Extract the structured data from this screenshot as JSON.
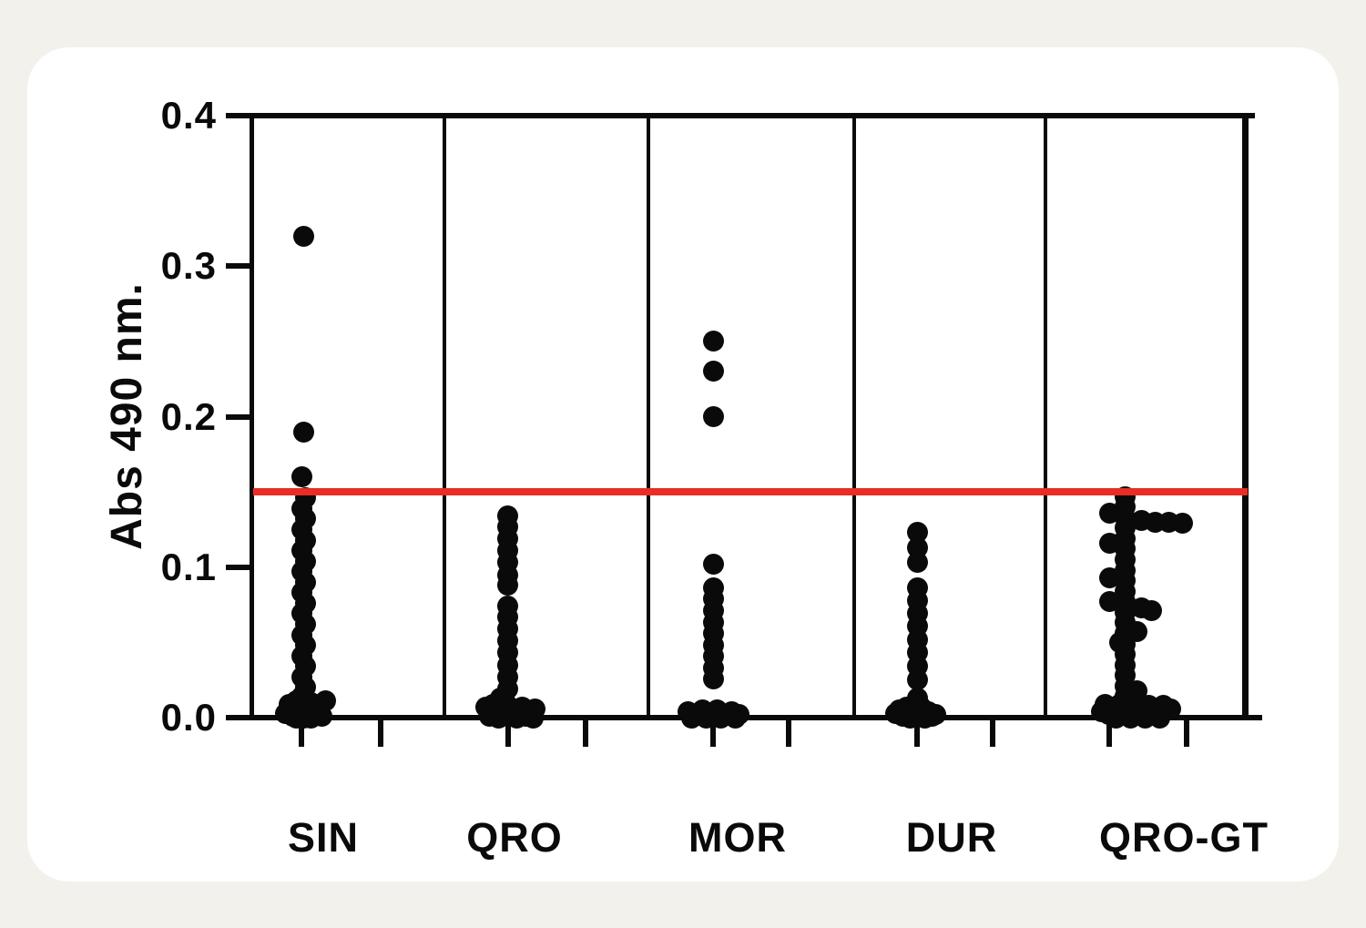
{
  "figure": {
    "background_color": "#f3f1eb",
    "card_color": "#ffffff"
  },
  "chart_data": {
    "type": "scatter",
    "variant": "strip-dot-plot",
    "title": "",
    "xlabel": "",
    "ylabel": "Abs 490 nm.",
    "ylim": [
      0,
      0.4
    ],
    "ytick_values": [
      0,
      0.1,
      0.2,
      0.3,
      0.4
    ],
    "ytick_labels": [
      "0.0",
      "0.1",
      "0.2",
      "0.3",
      "0.4"
    ],
    "grid": "off",
    "legend": "none",
    "point_color": "#0a0a0a",
    "cutoff_line": {
      "value": 0.15,
      "color": "#e82d24"
    },
    "categories": [
      "SIN",
      "QRO",
      "MOR",
      "DUR",
      "QRO-GT"
    ],
    "series": [
      {
        "name": "SIN",
        "points": [
          [
            0,
            0.32
          ],
          [
            0,
            0.19
          ],
          [
            -2,
            0.16
          ],
          [
            2,
            0.146
          ],
          [
            -2,
            0.139
          ],
          [
            2,
            0.132
          ],
          [
            -2,
            0.125
          ],
          [
            2,
            0.118
          ],
          [
            -2,
            0.111
          ],
          [
            2,
            0.104
          ],
          [
            -2,
            0.097
          ],
          [
            2,
            0.09
          ],
          [
            -2,
            0.083
          ],
          [
            2,
            0.076
          ],
          [
            -2,
            0.069
          ],
          [
            2,
            0.062
          ],
          [
            -2,
            0.055
          ],
          [
            2,
            0.048
          ],
          [
            -2,
            0.041
          ],
          [
            2,
            0.034
          ],
          [
            -2,
            0.027
          ],
          [
            2,
            0.02
          ],
          [
            -2,
            0.014
          ],
          [
            -16,
            0.009
          ],
          [
            -8,
            0.011
          ],
          [
            0,
            0.008
          ],
          [
            8,
            0.01
          ],
          [
            16,
            0.007
          ],
          [
            24,
            0.011
          ],
          [
            -20,
            0.003
          ],
          [
            -12,
            0.001
          ],
          [
            -4,
            0.004
          ],
          [
            4,
            0.001
          ],
          [
            12,
            0.003
          ],
          [
            20,
            0.001
          ],
          [
            0,
            0.0
          ],
          [
            -8,
            0.0
          ],
          [
            8,
            0.0
          ]
        ]
      },
      {
        "name": "QRO",
        "points": [
          [
            0,
            0.134
          ],
          [
            0,
            0.127
          ],
          [
            0,
            0.119
          ],
          [
            0,
            0.111
          ],
          [
            0,
            0.103
          ],
          [
            0,
            0.095
          ],
          [
            0,
            0.088
          ],
          [
            0,
            0.074
          ],
          [
            0,
            0.067
          ],
          [
            0,
            0.059
          ],
          [
            0,
            0.051
          ],
          [
            0,
            0.043
          ],
          [
            0,
            0.035
          ],
          [
            0,
            0.027
          ],
          [
            0,
            0.019
          ],
          [
            -8,
            0.013
          ],
          [
            -24,
            0.007
          ],
          [
            -16,
            0.009
          ],
          [
            -8,
            0.006
          ],
          [
            0,
            0.008
          ],
          [
            8,
            0.005
          ],
          [
            16,
            0.007
          ],
          [
            24,
            0.004
          ],
          [
            30,
            0.006
          ],
          [
            -20,
            0.001
          ],
          [
            -10,
            0.0
          ],
          [
            0,
            0.001
          ],
          [
            10,
            0.0
          ],
          [
            20,
            0.001
          ],
          [
            28,
            0.0
          ]
        ]
      },
      {
        "name": "MOR",
        "points": [
          [
            0,
            0.25
          ],
          [
            0,
            0.23
          ],
          [
            0,
            0.2
          ],
          [
            0,
            0.102
          ],
          [
            0,
            0.086
          ],
          [
            0,
            0.079
          ],
          [
            0,
            0.071
          ],
          [
            0,
            0.063
          ],
          [
            0,
            0.056
          ],
          [
            0,
            0.048
          ],
          [
            0,
            0.041
          ],
          [
            0,
            0.033
          ],
          [
            0,
            0.026
          ],
          [
            -28,
            0.004
          ],
          [
            -20,
            0.002
          ],
          [
            -12,
            0.005
          ],
          [
            -4,
            0.002
          ],
          [
            4,
            0.005
          ],
          [
            12,
            0.002
          ],
          [
            20,
            0.004
          ],
          [
            28,
            0.002
          ],
          [
            -24,
            0.0
          ],
          [
            -8,
            0.0
          ],
          [
            8,
            0.0
          ],
          [
            24,
            0.0
          ],
          [
            0,
            0.001
          ]
        ]
      },
      {
        "name": "DUR",
        "points": [
          [
            0,
            0.123
          ],
          [
            0,
            0.113
          ],
          [
            0,
            0.103
          ],
          [
            0,
            0.086
          ],
          [
            0,
            0.078
          ],
          [
            0,
            0.069
          ],
          [
            0,
            0.061
          ],
          [
            0,
            0.052
          ],
          [
            0,
            0.043
          ],
          [
            0,
            0.034
          ],
          [
            0,
            0.025
          ],
          [
            0,
            0.013
          ],
          [
            -20,
            0.005
          ],
          [
            -12,
            0.007
          ],
          [
            -4,
            0.005
          ],
          [
            4,
            0.007
          ],
          [
            12,
            0.004
          ],
          [
            -16,
            0.001
          ],
          [
            -8,
            0.0
          ],
          [
            0,
            0.002
          ],
          [
            8,
            0.0
          ],
          [
            16,
            0.001
          ],
          [
            -24,
            0.003
          ],
          [
            20,
            0.002
          ]
        ]
      },
      {
        "name": "QRO-GT",
        "points": [
          [
            0,
            0.147
          ],
          [
            0,
            0.14
          ],
          [
            0,
            0.133
          ],
          [
            0,
            0.126
          ],
          [
            0,
            0.119
          ],
          [
            0,
            0.112
          ],
          [
            0,
            0.105
          ],
          [
            0,
            0.098
          ],
          [
            0,
            0.091
          ],
          [
            0,
            0.084
          ],
          [
            0,
            0.077
          ],
          [
            0,
            0.07
          ],
          [
            0,
            0.063
          ],
          [
            0,
            0.056
          ],
          [
            0,
            0.049
          ],
          [
            0,
            0.042
          ],
          [
            0,
            0.035
          ],
          [
            0,
            0.028
          ],
          [
            0,
            0.021
          ],
          [
            0,
            0.014
          ],
          [
            -17,
            0.136
          ],
          [
            -17,
            0.116
          ],
          [
            -17,
            0.093
          ],
          [
            -17,
            0.077
          ],
          [
            -6,
            0.05
          ],
          [
            18,
            0.131
          ],
          [
            33,
            0.13
          ],
          [
            48,
            0.13
          ],
          [
            63,
            0.129
          ],
          [
            18,
            0.073
          ],
          [
            29,
            0.071
          ],
          [
            13,
            0.057
          ],
          [
            13,
            0.018
          ],
          [
            -22,
            0.009
          ],
          [
            -14,
            0.007
          ],
          [
            -6,
            0.009
          ],
          [
            2,
            0.007
          ],
          [
            10,
            0.009
          ],
          [
            18,
            0.006
          ],
          [
            26,
            0.008
          ],
          [
            34,
            0.006
          ],
          [
            42,
            0.008
          ],
          [
            50,
            0.006
          ],
          [
            -18,
            0.002
          ],
          [
            -10,
            0.0
          ],
          [
            -2,
            0.002
          ],
          [
            6,
            0.0
          ],
          [
            14,
            0.002
          ],
          [
            22,
            0.0
          ],
          [
            30,
            0.002
          ],
          [
            38,
            0.0
          ],
          [
            -26,
            0.004
          ]
        ]
      }
    ]
  }
}
